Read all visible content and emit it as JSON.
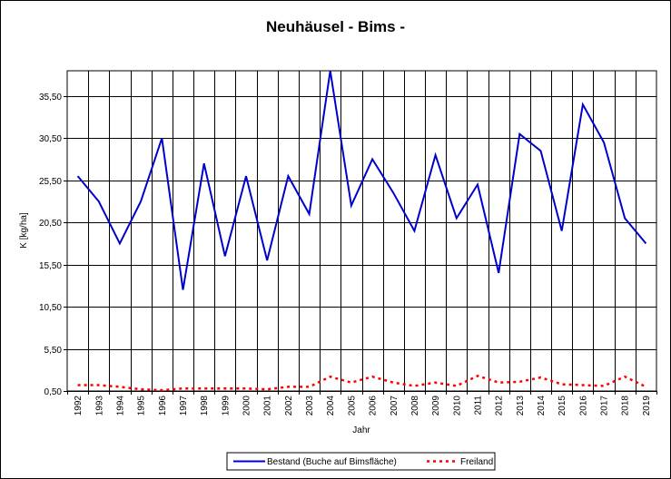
{
  "chart_data": {
    "type": "line",
    "title": "Neuhäusel - Bims -",
    "xlabel": "Jahr",
    "ylabel": "K [kg/ha]",
    "x": [
      "1992",
      "1993",
      "1994",
      "1995",
      "1996",
      "1997",
      "1998",
      "1999",
      "2000",
      "2001",
      "2002",
      "2003",
      "2004",
      "2005",
      "2006",
      "2007",
      "2008",
      "2009",
      "2010",
      "2011",
      "2012",
      "2013",
      "2014",
      "2015",
      "2016",
      "2017",
      "2018",
      "2019"
    ],
    "yticks": [
      "0,50",
      "5,50",
      "10,50",
      "15,50",
      "20,50",
      "25,50",
      "30,50",
      "35,50"
    ],
    "ylim": [
      0.5,
      38.5
    ],
    "grid": true,
    "legend_position": "bottom",
    "series": [
      {
        "name": "Bestand (Buche auf Bimsfläche)",
        "color": "#0000cc",
        "style": "solid",
        "values": [
          26.0,
          23.0,
          18.0,
          23.0,
          30.5,
          12.5,
          27.5,
          16.5,
          26.0,
          16.0,
          26.0,
          21.5,
          38.5,
          22.5,
          28.0,
          24.0,
          19.5,
          28.5,
          21.0,
          25.0,
          14.5,
          31.0,
          29.0,
          19.5,
          34.5,
          30.0,
          21.0,
          18.0
        ]
      },
      {
        "name": "Freiland",
        "color": "#ff0000",
        "style": "dotted",
        "values": [
          1.2,
          1.2,
          1.0,
          0.7,
          0.6,
          0.8,
          0.8,
          0.8,
          0.8,
          0.7,
          1.0,
          1.0,
          2.2,
          1.5,
          2.2,
          1.5,
          1.1,
          1.5,
          1.1,
          2.3,
          1.5,
          1.6,
          2.1,
          1.3,
          1.2,
          1.1,
          2.2,
          1.0
        ]
      }
    ]
  }
}
